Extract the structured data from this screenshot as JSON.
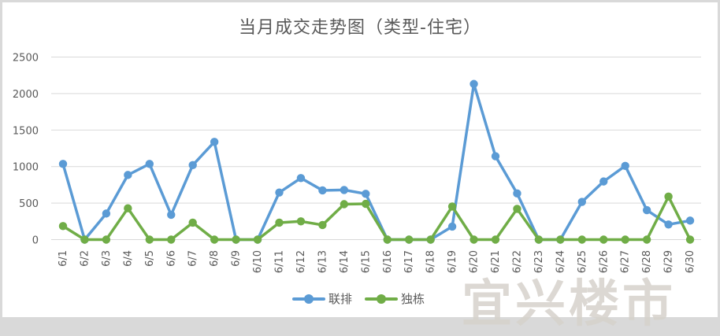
{
  "chart_data": {
    "type": "line",
    "title": "当月成交走势图（类型-住宅）",
    "xlabel": "",
    "ylabel": "",
    "ylim": [
      0,
      2500
    ],
    "yticks": [
      0,
      500,
      1000,
      1500,
      2000,
      2500
    ],
    "grid": true,
    "legend_position": "bottom",
    "categories": [
      "6/1",
      "6/2",
      "6/3",
      "6/4",
      "6/5",
      "6/6",
      "6/7",
      "6/8",
      "6/9",
      "6/10",
      "6/11",
      "6/12",
      "6/13",
      "6/14",
      "6/15",
      "6/16",
      "6/17",
      "6/18",
      "6/19",
      "6/20",
      "6/21",
      "6/22",
      "6/23",
      "6/24",
      "6/25",
      "6/26",
      "6/27",
      "6/28",
      "6/29",
      "6/30"
    ],
    "series": [
      {
        "name": "联排",
        "color": "#5B9BD5",
        "values": [
          1036,
          0,
          357,
          885,
          1036,
          340,
          1020,
          1338,
          0,
          0,
          645,
          843,
          674,
          680,
          627,
          0,
          0,
          0,
          179,
          2131,
          1142,
          632,
          0,
          0,
          517,
          796,
          1010,
          403,
          207,
          260
        ]
      },
      {
        "name": "独栋",
        "color": "#70AD47",
        "values": [
          185,
          0,
          0,
          429,
          0,
          0,
          232,
          0,
          0,
          0,
          232,
          250,
          200,
          485,
          490,
          0,
          0,
          0,
          453,
          0,
          0,
          421,
          0,
          0,
          0,
          0,
          0,
          0,
          589,
          0
        ]
      }
    ]
  },
  "legend": {
    "items": [
      {
        "label": "联排",
        "color": "#5B9BD5"
      },
      {
        "label": "独栋",
        "color": "#70AD47"
      }
    ]
  },
  "watermark": "宜兴楼市"
}
